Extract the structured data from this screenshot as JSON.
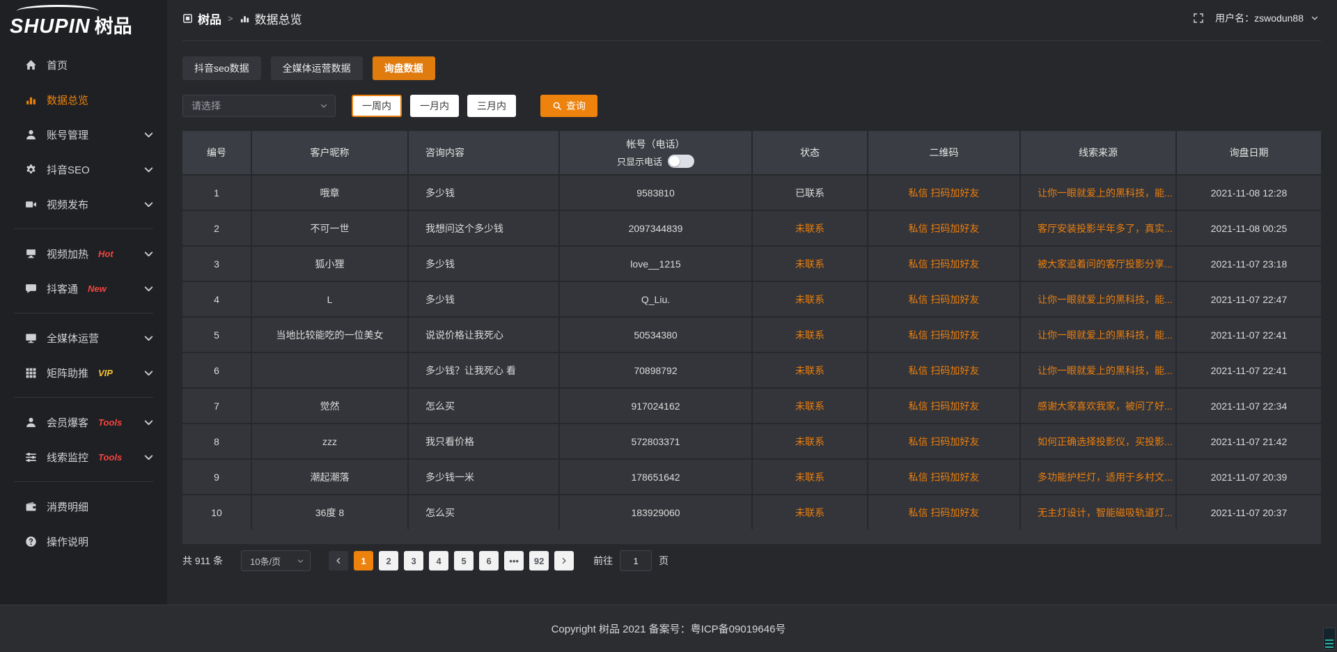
{
  "app": {
    "logo_en": "SHUPIN",
    "logo_cn": "树品",
    "footer": "Copyright 树品 2021 备案号：粤ICP备09019646号"
  },
  "colors": {
    "accent_orange": "#ed820e",
    "link_orange": "#ed7e0c",
    "badge_red": "#f5433f",
    "badge_yellow": "#f6c533",
    "sidebar_bg": "#1e2023",
    "content_bg": "#26282c",
    "table_bg": "#33353a"
  },
  "header": {
    "breadcrumb_root": "树品",
    "breadcrumb_sep": ">",
    "breadcrumb_current": "数据总览",
    "username_label": "用户名：",
    "username": "zswodun88"
  },
  "sidebar": {
    "items": [
      {
        "key": "home",
        "icon": "home",
        "label": "首页"
      },
      {
        "key": "data-overview",
        "icon": "chart",
        "label": "数据总览",
        "active": true
      },
      {
        "key": "account-management",
        "icon": "user",
        "label": "账号管理",
        "chevron": true
      },
      {
        "key": "douyin-seo",
        "icon": "gear",
        "label": "抖音SEO",
        "chevron": true
      },
      {
        "key": "video-publish",
        "icon": "video",
        "label": "视频发布",
        "chevron": true
      },
      {
        "divider": true
      },
      {
        "key": "video-heating",
        "icon": "heat",
        "label": "视频加热",
        "badge": "Hot",
        "badge_color": "#f5433f",
        "chevron": true
      },
      {
        "key": "douketong",
        "icon": "chat",
        "label": "抖客通",
        "badge": "New",
        "badge_color": "#f5433f",
        "chevron": true
      },
      {
        "divider": true
      },
      {
        "key": "media-operation",
        "icon": "monitor",
        "label": "全媒体运营",
        "chevron": true
      },
      {
        "key": "matrix-boost",
        "icon": "grid",
        "label": "矩阵助推",
        "badge": "VIP",
        "badge_color": "#f6c533",
        "chevron": true
      },
      {
        "divider": true
      },
      {
        "key": "member-baoke",
        "icon": "user2",
        "label": "会员爆客",
        "badge": "Tools",
        "badge_color": "#f5433f",
        "chevron": true
      },
      {
        "key": "clue-monitor",
        "icon": "sliders",
        "label": "线索监控",
        "badge": "Tools",
        "badge_color": "#f5433f",
        "chevron": true
      },
      {
        "divider": true
      },
      {
        "key": "consume-detail",
        "icon": "wallet",
        "label": "消费明细"
      },
      {
        "key": "operation-guide",
        "icon": "question",
        "label": "操作说明"
      }
    ]
  },
  "tabs": [
    {
      "key": "douyin-seo-data",
      "label": "抖音seo数据",
      "active": false
    },
    {
      "key": "media-operation-data",
      "label": "全媒体运营数据",
      "active": false
    },
    {
      "key": "inquiry-data",
      "label": "询盘数据",
      "active": true
    }
  ],
  "filters": {
    "select_placeholder": "请选择",
    "period_buttons": [
      {
        "key": "one-week",
        "label": "一周内",
        "selected": true
      },
      {
        "key": "one-month",
        "label": "一月内",
        "selected": false
      },
      {
        "key": "three-months",
        "label": "三月内",
        "selected": false
      }
    ],
    "search_label": "查询"
  },
  "table": {
    "headers": [
      "编号",
      "客户昵称",
      "咨询内容",
      "帐号（电话）",
      "状态",
      "二维码",
      "线索来源",
      "询盘日期"
    ],
    "phone_toggle_label": "只显示电话",
    "phone_toggle_on": false,
    "rows": [
      {
        "id": "1",
        "nickname": "哦章",
        "content": "多少钱",
        "account": "9583810",
        "status": "已联系",
        "contacted": true,
        "qrcode": "私信 扫码加好友",
        "source": "让你一眼就爱上的黑科技，能...",
        "date": "2021-11-08 12:28"
      },
      {
        "id": "2",
        "nickname": "不可一世",
        "content": "我想问这个多少钱",
        "account": "2097344839",
        "status": "未联系",
        "contacted": false,
        "qrcode": "私信 扫码加好友",
        "source": "客厅安装投影半年多了，真实...",
        "date": "2021-11-08 00:25"
      },
      {
        "id": "3",
        "nickname": "狐小狸",
        "content": "多少钱",
        "account": "love__1215",
        "status": "未联系",
        "contacted": false,
        "qrcode": "私信 扫码加好友",
        "source": "被大家追着问的客厅投影分享...",
        "date": "2021-11-07 23:18"
      },
      {
        "id": "4",
        "nickname": "L",
        "content": "多少钱",
        "account": "Q_Liu.",
        "status": "未联系",
        "contacted": false,
        "qrcode": "私信 扫码加好友",
        "source": "让你一眼就爱上的黑科技，能...",
        "date": "2021-11-07 22:47"
      },
      {
        "id": "5",
        "nickname": "当地比较能吃的一位美女",
        "content": "说说价格让我死心",
        "account": "50534380",
        "status": "未联系",
        "contacted": false,
        "qrcode": "私信 扫码加好友",
        "source": "让你一眼就爱上的黑科技，能...",
        "date": "2021-11-07 22:41"
      },
      {
        "id": "6",
        "nickname": "",
        "content": "多少钱？让我死心 看",
        "account": "70898792",
        "status": "未联系",
        "contacted": false,
        "qrcode": "私信 扫码加好友",
        "source": "让你一眼就爱上的黑科技，能...",
        "date": "2021-11-07 22:41"
      },
      {
        "id": "7",
        "nickname": "觉然",
        "content": "怎么买",
        "account": "917024162",
        "status": "未联系",
        "contacted": false,
        "qrcode": "私信 扫码加好友",
        "source": "感谢大家喜欢我家，被问了好...",
        "date": "2021-11-07 22:34"
      },
      {
        "id": "8",
        "nickname": "zzz",
        "content": "我只看价格",
        "account": "572803371",
        "status": "未联系",
        "contacted": false,
        "qrcode": "私信 扫码加好友",
        "source": "如何正确选择投影仪，买投影...",
        "date": "2021-11-07 21:42"
      },
      {
        "id": "9",
        "nickname": "潮起潮落",
        "content": "多少钱一米",
        "account": "178651642",
        "status": "未联系",
        "contacted": false,
        "qrcode": "私信 扫码加好友",
        "source": "多功能护栏灯，适用于乡村文...",
        "date": "2021-11-07 20:39"
      },
      {
        "id": "10",
        "nickname": "36度 8",
        "content": "怎么买",
        "account": "183929060",
        "status": "未联系",
        "contacted": false,
        "qrcode": "私信 扫码加好友",
        "source": "无主灯设计，智能磁吸轨道灯...",
        "date": "2021-11-07 20:37"
      }
    ]
  },
  "pagination": {
    "total_label": "共 911 条",
    "page_size": "10条/页",
    "pages": [
      "1",
      "2",
      "3",
      "4",
      "5",
      "6",
      "•••",
      "92"
    ],
    "active_page": "1",
    "goto_label": "前往",
    "goto_value": "1",
    "goto_suffix": "页"
  }
}
